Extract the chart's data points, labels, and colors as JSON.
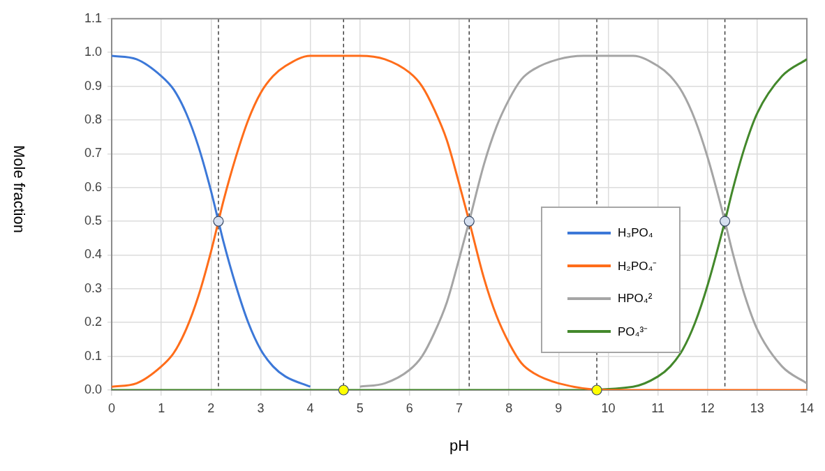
{
  "chart_data": {
    "type": "line",
    "xlabel": "pH",
    "ylabel": "Mole fraction",
    "series": [
      {
        "name": "H₃PO₄",
        "color": "#3c78d8",
        "x": [
          0,
          0.5,
          1,
          1.25,
          1.5,
          1.75,
          2,
          2.15,
          2.25,
          2.5,
          2.75,
          3,
          3.25,
          3.5,
          4
        ],
        "values": [
          0.99,
          0.98,
          0.93,
          0.89,
          0.82,
          0.72,
          0.59,
          0.5,
          0.44,
          0.31,
          0.2,
          0.12,
          0.07,
          0.04,
          0.01
        ]
      },
      {
        "name": "H₂PO₄⁻",
        "color": "#ff6d1a",
        "x": [
          0,
          0.5,
          1,
          1.25,
          1.5,
          1.75,
          2,
          2.15,
          2.25,
          2.5,
          2.75,
          3,
          3.25,
          3.5,
          4,
          4.5,
          5,
          5.5,
          6,
          6.25,
          6.5,
          6.75,
          7,
          7.2,
          7.5,
          7.75,
          8,
          8.25,
          8.5,
          9,
          10,
          10.5,
          11,
          11.5,
          12,
          12.5,
          13,
          13.5,
          14
        ],
        "values": [
          0.01,
          0.02,
          0.07,
          0.11,
          0.18,
          0.28,
          0.41,
          0.5,
          0.56,
          0.69,
          0.8,
          0.88,
          0.93,
          0.96,
          0.99,
          0.99,
          0.99,
          0.98,
          0.94,
          0.9,
          0.83,
          0.74,
          0.61,
          0.5,
          0.33,
          0.22,
          0.14,
          0.08,
          0.05,
          0.02,
          0,
          0,
          0,
          0,
          0,
          0,
          0,
          0,
          0
        ]
      },
      {
        "name": "HPO₄²",
        "color": "#a5a5a5",
        "x": [
          5,
          5.5,
          6,
          6.25,
          6.5,
          6.75,
          7,
          7.2,
          7.5,
          7.75,
          8,
          8.25,
          8.5,
          9,
          9.5,
          10,
          10.5,
          11,
          11.25,
          11.5,
          11.75,
          12,
          12.35,
          12.5,
          12.75,
          13,
          13.5,
          14
        ],
        "values": [
          0.01,
          0.02,
          0.06,
          0.1,
          0.17,
          0.26,
          0.39,
          0.5,
          0.67,
          0.78,
          0.86,
          0.92,
          0.95,
          0.98,
          0.99,
          0.99,
          0.99,
          0.96,
          0.93,
          0.88,
          0.8,
          0.69,
          0.5,
          0.41,
          0.28,
          0.18,
          0.07,
          0.02
        ]
      },
      {
        "name": "PO₄³⁻",
        "color": "#43882b",
        "x": [
          0,
          1,
          2,
          3,
          4,
          5,
          6,
          7,
          8,
          9,
          10.5,
          11,
          11.25,
          11.5,
          11.75,
          12,
          12.35,
          12.5,
          12.75,
          13,
          13.5,
          14
        ],
        "values": [
          0,
          0,
          0,
          0,
          0,
          0,
          0,
          0,
          0,
          0,
          0.01,
          0.04,
          0.07,
          0.12,
          0.2,
          0.31,
          0.5,
          0.59,
          0.72,
          0.82,
          0.93,
          0.98
        ]
      },
      {
        "type": "scatter",
        "marker": "circle",
        "color": "#d6e0f0",
        "x": [
          2.15,
          7.2,
          12.35
        ],
        "values": [
          0.5,
          0.5,
          0.5
        ]
      },
      {
        "type": "scatter",
        "marker": "circle",
        "color": "#ffff00",
        "x": [
          4.67,
          9.77
        ],
        "values": [
          0,
          0
        ]
      }
    ],
    "marker": "none",
    "line_style": "solid",
    "xlim": [
      0,
      14
    ],
    "xticks": [
      0,
      1,
      2,
      3,
      4,
      5,
      6,
      7,
      8,
      9,
      10,
      11,
      12,
      13,
      14
    ],
    "ylim": [
      0,
      1.1
    ],
    "yticks": [
      {
        "value": 0,
        "label": "0.0"
      },
      0.1,
      0.2,
      0.3,
      0.4,
      0.5,
      0.6,
      0.7,
      0.8,
      0.9,
      {
        "value": 1,
        "label": "1.0"
      },
      1.1
    ],
    "ref_lines": [
      {
        "axis": "x",
        "value": 2.15,
        "color": "#404040",
        "line_style": "dashed"
      },
      {
        "axis": "x",
        "value": 4.67,
        "color": "#404040",
        "line_style": "dashed"
      },
      {
        "axis": "x",
        "value": 7.2,
        "color": "#404040",
        "line_style": "dashed"
      },
      {
        "axis": "x",
        "value": 9.77,
        "color": "#404040",
        "line_style": "dashed"
      },
      {
        "axis": "x",
        "value": 12.35,
        "color": "#404040",
        "line_style": "dashed"
      }
    ],
    "grid": true,
    "legend": "right"
  }
}
